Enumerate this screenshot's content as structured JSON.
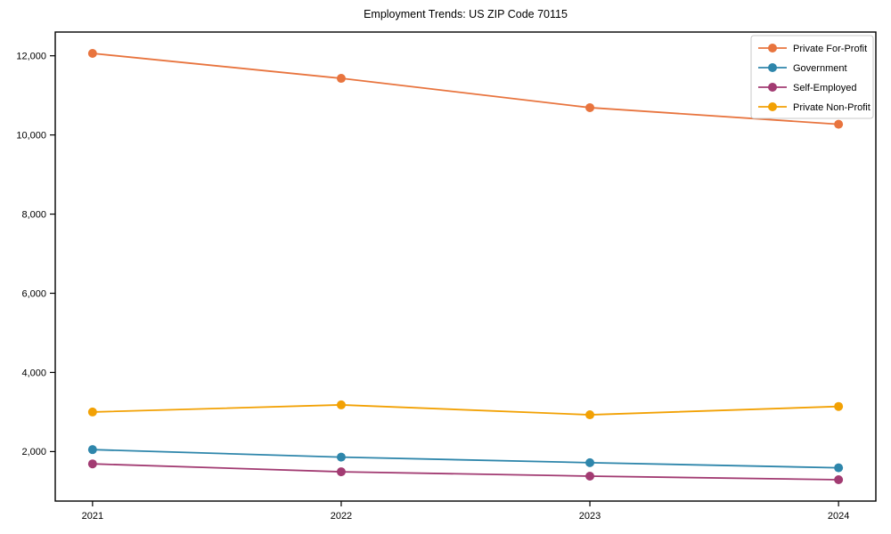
{
  "chart_data": {
    "type": "line",
    "title": "Employment Trends: US ZIP Code 70115",
    "xlabel": "",
    "ylabel": "",
    "categories": [
      "2021",
      "2022",
      "2023",
      "2024"
    ],
    "x": [
      2021,
      2022,
      2023,
      2024
    ],
    "series": [
      {
        "name": "Private For-Profit",
        "color": "#E8743E",
        "values": [
          12060,
          11430,
          10690,
          10270
        ]
      },
      {
        "name": "Government",
        "color": "#2E86AB",
        "values": [
          2050,
          1860,
          1720,
          1590
        ]
      },
      {
        "name": "Self-Employed",
        "color": "#A23B72",
        "values": [
          1690,
          1490,
          1380,
          1290
        ]
      },
      {
        "name": "Private Non-Profit",
        "color": "#F2A104",
        "values": [
          3000,
          3180,
          2930,
          3140
        ]
      }
    ],
    "yticks": [
      2000,
      4000,
      6000,
      8000,
      10000,
      12000
    ],
    "ytick_labels": [
      "2,000",
      "4,000",
      "6,000",
      "8,000",
      "10,000",
      "12,000"
    ],
    "xlim": [
      2020.85,
      2024.15
    ],
    "ylim": [
      750,
      12600
    ],
    "grid": false,
    "legend_position": "upper right",
    "marker": "circle",
    "axes_color": "#000000",
    "legend_border_color": "#c8c8c8",
    "background_color": "#ffffff"
  }
}
